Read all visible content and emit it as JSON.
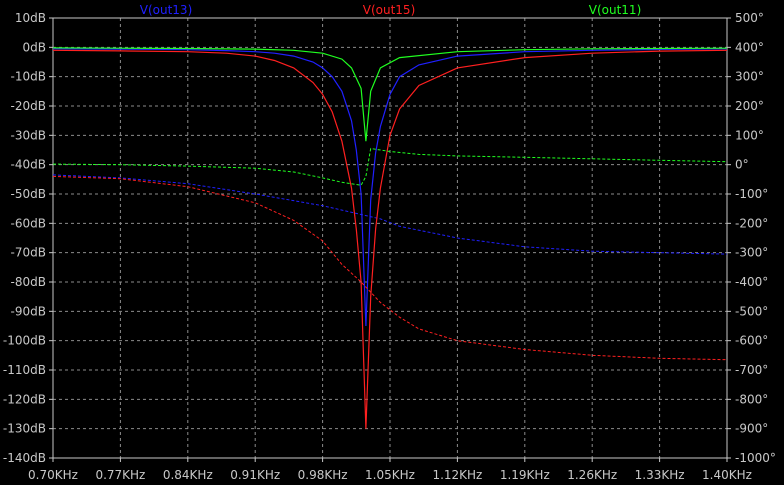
{
  "chart_data": {
    "type": "line",
    "x_unit": "KHz",
    "x_ticks": [
      "0.70KHz",
      "0.77KHz",
      "0.84KHz",
      "0.91KHz",
      "0.98KHz",
      "1.05KHz",
      "1.12KHz",
      "1.19KHz",
      "1.26KHz",
      "1.33KHz",
      "1.40KHz"
    ],
    "y_left_ticks": [
      "10dB",
      "0dB",
      "-10dB",
      "-20dB",
      "-30dB",
      "-40dB",
      "-50dB",
      "-60dB",
      "-70dB",
      "-80dB",
      "-90dB",
      "-100dB",
      "-110dB",
      "-120dB",
      "-130dB",
      "-140dB"
    ],
    "y_right_ticks": [
      "500°",
      "400°",
      "300°",
      "200°",
      "100°",
      "0°",
      "-100°",
      "-200°",
      "-300°",
      "-400°",
      "-500°",
      "-600°",
      "-700°",
      "-800°",
      "-900°",
      "-1000°"
    ],
    "xlim": [
      0.7,
      1.4
    ],
    "ylim_left": [
      -140,
      10
    ],
    "ylim_right": [
      -1000,
      500
    ],
    "grid": true,
    "series": [
      {
        "name": "V(out13)",
        "color": "#2020ff",
        "magnitude_db": {
          "x": [
            0.7,
            0.77,
            0.84,
            0.88,
            0.91,
            0.93,
            0.95,
            0.97,
            0.98,
            0.99,
            1.0,
            1.01,
            1.015,
            1.02,
            1.025,
            1.03,
            1.035,
            1.04,
            1.05,
            1.06,
            1.08,
            1.12,
            1.19,
            1.26,
            1.33,
            1.4
          ],
          "y": [
            -0.5,
            -0.6,
            -0.8,
            -1.1,
            -1.5,
            -2.0,
            -3.0,
            -5.0,
            -7.0,
            -10.0,
            -15.0,
            -25.0,
            -35.0,
            -50.0,
            -95.0,
            -52.0,
            -36.0,
            -27.0,
            -16.0,
            -10.0,
            -6.0,
            -3.0,
            -1.5,
            -1.0,
            -0.7,
            -0.5
          ]
        },
        "phase_deg": {
          "x": [
            0.7,
            0.77,
            0.84,
            0.91,
            0.98,
            1.0,
            1.02,
            1.04,
            1.06,
            1.12,
            1.19,
            1.26,
            1.33,
            1.4
          ],
          "y": [
            -35,
            -45,
            -65,
            -100,
            -140,
            -155,
            -170,
            -185,
            -210,
            -250,
            -280,
            -295,
            -300,
            -305
          ]
        }
      },
      {
        "name": "V(out15)",
        "color": "#ff2020",
        "magnitude_db": {
          "x": [
            0.7,
            0.77,
            0.84,
            0.88,
            0.91,
            0.93,
            0.95,
            0.97,
            0.98,
            0.99,
            1.0,
            1.01,
            1.015,
            1.02,
            1.025,
            1.03,
            1.035,
            1.04,
            1.05,
            1.06,
            1.08,
            1.12,
            1.19,
            1.26,
            1.33,
            1.4
          ],
          "y": [
            -1.0,
            -1.2,
            -1.5,
            -2.0,
            -3.0,
            -4.5,
            -7.0,
            -12.0,
            -16.0,
            -22.0,
            -32.0,
            -48.0,
            -62.0,
            -80.0,
            -130.0,
            -85.0,
            -62.0,
            -48.0,
            -30.0,
            -21.0,
            -13.0,
            -7.0,
            -3.5,
            -2.0,
            -1.3,
            -1.0
          ]
        },
        "phase_deg": {
          "x": [
            0.7,
            0.77,
            0.84,
            0.91,
            0.95,
            0.98,
            1.0,
            1.02,
            1.04,
            1.06,
            1.08,
            1.12,
            1.19,
            1.26,
            1.33,
            1.4
          ],
          "y": [
            -40,
            -48,
            -75,
            -130,
            -190,
            -260,
            -340,
            -400,
            -470,
            -520,
            -560,
            -600,
            -630,
            -650,
            -660,
            -665
          ]
        }
      },
      {
        "name": "V(out11)",
        "color": "#20ff20",
        "magnitude_db": {
          "x": [
            0.7,
            0.77,
            0.84,
            0.91,
            0.95,
            0.98,
            1.0,
            1.01,
            1.02,
            1.025,
            1.03,
            1.04,
            1.06,
            1.12,
            1.19,
            1.26,
            1.33,
            1.4
          ],
          "y": [
            -0.2,
            -0.3,
            -0.4,
            -0.6,
            -1.0,
            -2.0,
            -4.0,
            -7.0,
            -14.0,
            -32.0,
            -15.0,
            -7.0,
            -3.5,
            -1.5,
            -0.8,
            -0.5,
            -0.4,
            -0.3
          ]
        },
        "phase_deg": {
          "x": [
            0.7,
            0.77,
            0.84,
            0.91,
            0.95,
            0.98,
            1.0,
            1.02,
            1.025,
            1.03,
            1.05,
            1.08,
            1.12,
            1.19,
            1.26,
            1.33,
            1.4
          ],
          "y": [
            2,
            0,
            -5,
            -12,
            -25,
            -45,
            -60,
            -70,
            -40,
            55,
            45,
            35,
            30,
            25,
            20,
            15,
            10
          ]
        }
      }
    ]
  }
}
